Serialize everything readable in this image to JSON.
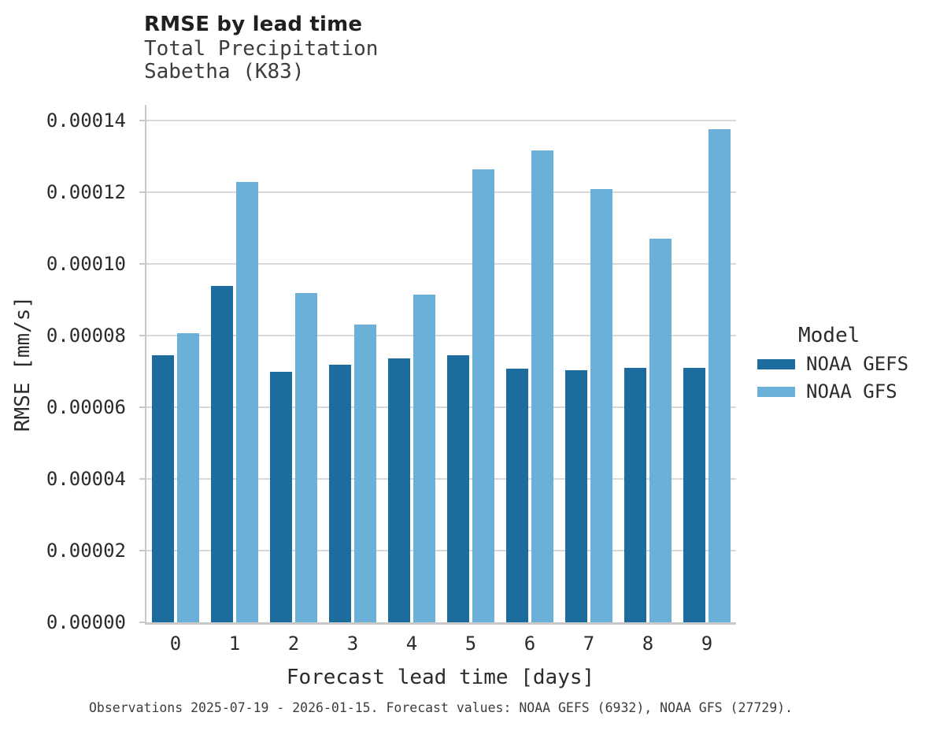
{
  "chart_data": {
    "type": "bar",
    "title": "RMSE by lead time",
    "subtitle_line1": "Total Precipitation",
    "subtitle_line2": "Sabetha (K83)",
    "xlabel": "Forecast lead time [days]",
    "ylabel": "RMSE [mm/s]",
    "categories": [
      "0",
      "1",
      "2",
      "3",
      "4",
      "5",
      "6",
      "7",
      "8",
      "9"
    ],
    "series": [
      {
        "name": "NOAA GEFS",
        "color": "#1C6D9D",
        "values": [
          7.44e-05,
          9.38e-05,
          6.98e-05,
          7.18e-05,
          7.36e-05,
          7.44e-05,
          7.08e-05,
          7.03e-05,
          7.1e-05,
          7.09e-05
        ]
      },
      {
        "name": "NOAA GFS",
        "color": "#6BB0D8",
        "values": [
          8.07e-05,
          0.0001228,
          9.19e-05,
          8.3e-05,
          9.14e-05,
          0.0001264,
          0.0001317,
          0.0001209,
          0.0001071,
          0.0001376
        ]
      }
    ],
    "ylim": [
      0,
      0.0001444
    ],
    "yticks": [
      0.0,
      2e-05,
      4e-05,
      6e-05,
      8e-05,
      0.0001,
      0.00012,
      0.00014
    ],
    "ytick_labels": [
      "0.00000",
      "0.00002",
      "0.00004",
      "0.00006",
      "0.00008",
      "0.00010",
      "0.00012",
      "0.00014"
    ],
    "grid": true,
    "legend_title": "Model",
    "legend_position": "right"
  },
  "colors": {
    "background": "#FFFFFF",
    "gridline": "#D9D9D9",
    "spine": "#C9C9C9",
    "title_text": "#1F1F1F",
    "subtitle_text": "#3D3D3D",
    "axis_text": "#2B2B2B",
    "caption_text": "#3D3D3D"
  },
  "footer": {
    "caption": "Observations 2025-07-19 - 2026-01-15. Forecast values: NOAA GEFS (6932), NOAA GFS (27729)."
  }
}
